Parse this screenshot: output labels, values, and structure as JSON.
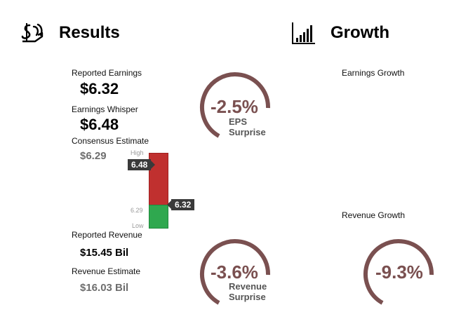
{
  "results": {
    "title": "Results",
    "reported_earnings_label": "Reported Earnings",
    "reported_earnings_value": "$6.32",
    "whisper_label": "Earnings Whisper",
    "whisper_value": "$6.48",
    "consensus_label": "Consensus Estimate",
    "consensus_value": "$6.29",
    "reported_revenue_label": "Reported Revenue",
    "reported_revenue_value": "$15.45 Bil",
    "revenue_estimate_label": "Revenue Estimate",
    "revenue_estimate_value": "$16.03 Bil"
  },
  "range_bar": {
    "high_label": "High",
    "low_label": "Low",
    "consensus_tick": "6.29",
    "whisper_tag": "6.48",
    "reported_tag": "6.32",
    "colors": {
      "miss": "#c0302f",
      "beat": "#2fa84f"
    }
  },
  "growth": {
    "title": "Growth",
    "earnings_growth_label": "Earnings Growth",
    "revenue_growth_label": "Revenue Growth"
  },
  "gauges": {
    "eps_surprise": {
      "value": "-2.5%",
      "caption_line1": "EPS",
      "caption_line2": "Surprise"
    },
    "revenue_surprise": {
      "value": "-3.6%",
      "caption_line1": "Revenue",
      "caption_line2": "Surprise"
    },
    "revenue_growth": {
      "value": "-9.3%"
    },
    "ring_color": "#7a5050"
  },
  "icons": {
    "results": "money-hand-icon",
    "growth": "bar-chart-icon"
  }
}
